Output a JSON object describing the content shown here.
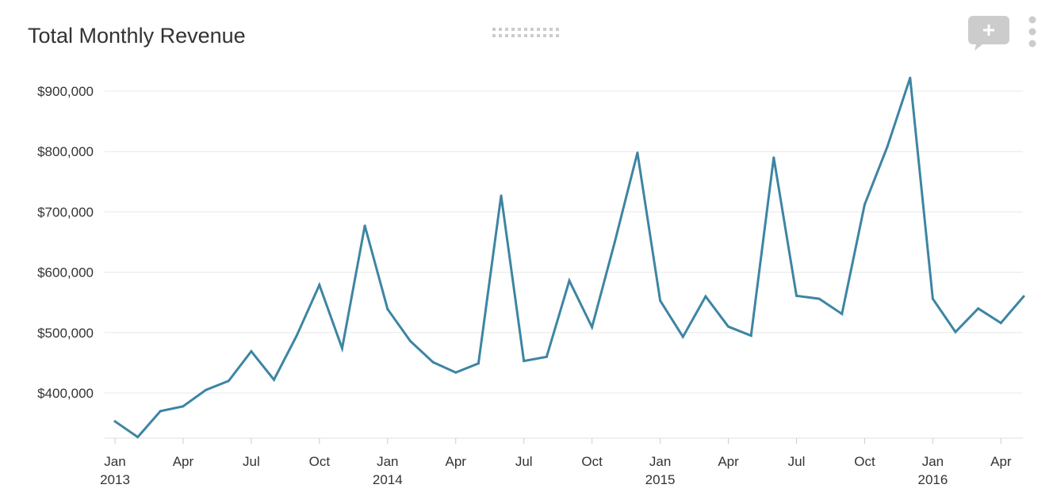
{
  "header": {
    "title": "Total Monthly Revenue"
  },
  "icons": {
    "drag": "drag-handle-icon",
    "comment": "add-comment-icon",
    "more": "more-vertical-icon"
  },
  "colors": {
    "line": "#3d85a3",
    "grid": "#e8e8e8",
    "icon": "#cccccc"
  },
  "chart_data": {
    "type": "line",
    "title": "Total Monthly Revenue",
    "xlabel": "",
    "ylabel": "",
    "ylim": [
      320000,
      940000
    ],
    "grid": true,
    "legend": "none",
    "yticks": [
      {
        "value": 400000,
        "label": "$400,000"
      },
      {
        "value": 500000,
        "label": "$500,000"
      },
      {
        "value": 600000,
        "label": "$600,000"
      },
      {
        "value": 700000,
        "label": "$700,000"
      },
      {
        "value": 800000,
        "label": "$800,000"
      },
      {
        "value": 900000,
        "label": "$900,000"
      }
    ],
    "xticks": [
      {
        "date": "2013-01",
        "label": "Jan",
        "year": "2013"
      },
      {
        "date": "2013-04",
        "label": "Apr",
        "year": ""
      },
      {
        "date": "2013-07",
        "label": "Jul",
        "year": ""
      },
      {
        "date": "2013-10",
        "label": "Oct",
        "year": ""
      },
      {
        "date": "2014-01",
        "label": "Jan",
        "year": "2014"
      },
      {
        "date": "2014-04",
        "label": "Apr",
        "year": ""
      },
      {
        "date": "2014-07",
        "label": "Jul",
        "year": ""
      },
      {
        "date": "2014-10",
        "label": "Oct",
        "year": ""
      },
      {
        "date": "2015-01",
        "label": "Jan",
        "year": "2015"
      },
      {
        "date": "2015-04",
        "label": "Apr",
        "year": ""
      },
      {
        "date": "2015-07",
        "label": "Jul",
        "year": ""
      },
      {
        "date": "2015-10",
        "label": "Oct",
        "year": ""
      },
      {
        "date": "2016-01",
        "label": "Jan",
        "year": "2016"
      },
      {
        "date": "2016-04",
        "label": "Apr",
        "year": ""
      }
    ],
    "x": [
      "2013-01",
      "2013-02",
      "2013-03",
      "2013-04",
      "2013-05",
      "2013-06",
      "2013-07",
      "2013-08",
      "2013-09",
      "2013-10",
      "2013-11",
      "2013-12",
      "2014-01",
      "2014-02",
      "2014-03",
      "2014-04",
      "2014-05",
      "2014-06",
      "2014-07",
      "2014-08",
      "2014-09",
      "2014-10",
      "2014-11",
      "2014-12",
      "2015-01",
      "2015-02",
      "2015-03",
      "2015-04",
      "2015-05",
      "2015-06",
      "2015-07",
      "2015-08",
      "2015-09",
      "2015-10",
      "2015-11",
      "2015-12",
      "2016-01",
      "2016-02",
      "2016-03",
      "2016-04",
      "2016-05"
    ],
    "series": [
      {
        "values": [
          353000,
          327000,
          370000,
          378000,
          405000,
          420000,
          469000,
          422000,
          495000,
          579000,
          474000,
          677000,
          539000,
          486000,
          451000,
          434000,
          449000,
          727000,
          453000,
          460000,
          586000,
          509000,
          650000,
          798000,
          553000,
          493000,
          560000,
          510000,
          495000,
          790000,
          561000,
          556000,
          531000,
          712000,
          808000,
          922000,
          556000,
          501000,
          540000,
          516000,
          560000
        ]
      }
    ]
  }
}
